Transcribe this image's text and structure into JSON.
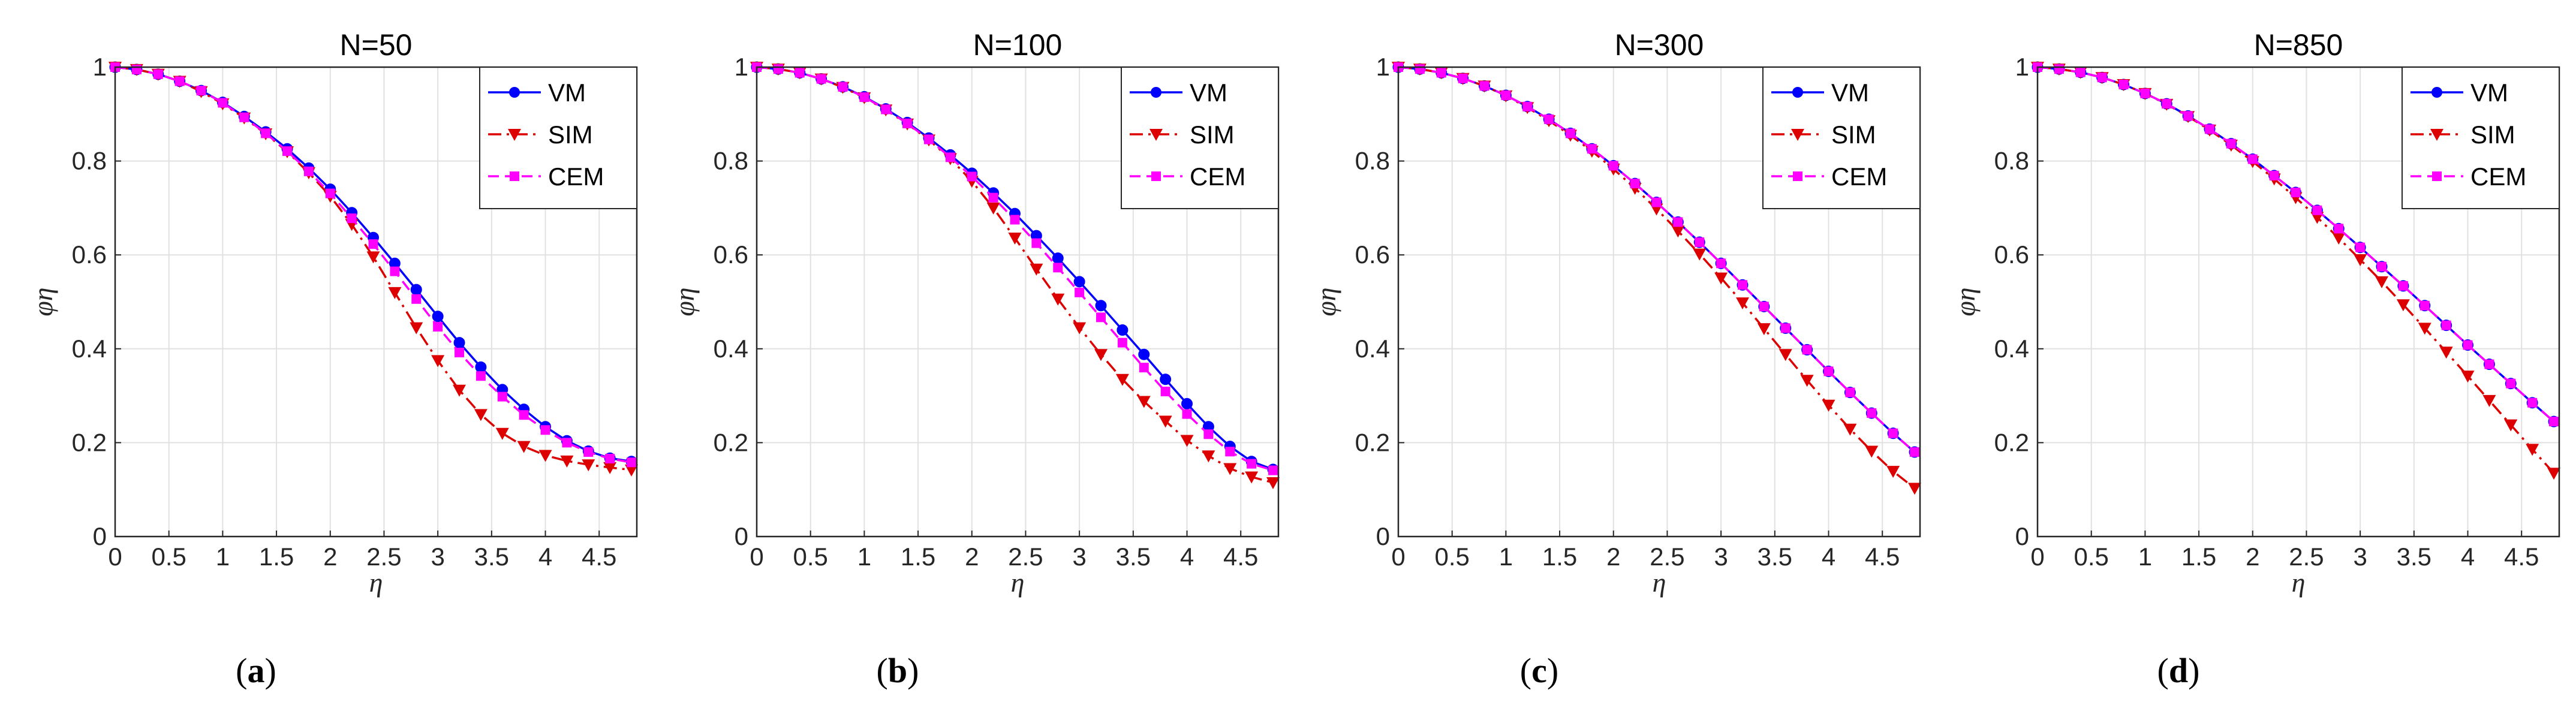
{
  "x": [
    0,
    0.2,
    0.4,
    0.6,
    0.8,
    1.0,
    1.2,
    1.4,
    1.6,
    1.8,
    2.0,
    2.2,
    2.4,
    2.6,
    2.8,
    3.0,
    3.2,
    3.4,
    3.6,
    3.8,
    4.0,
    4.2,
    4.4,
    4.6,
    4.8
  ],
  "chart_data": [
    {
      "type": "line",
      "title": "N=50",
      "panel_label": "a",
      "xlabel": "η",
      "ylabel": "φη",
      "xlim": [
        0,
        4.85
      ],
      "ylim": [
        0,
        1
      ],
      "xticks": [
        0,
        0.5,
        1,
        1.5,
        2,
        2.5,
        3,
        3.5,
        4,
        4.5
      ],
      "xtick_labels": [
        "0",
        "0.5",
        "1",
        "1.5",
        "2",
        "2.5",
        "3",
        "3.5",
        "4",
        "4.5"
      ],
      "yticks": [
        0,
        0.2,
        0.4,
        0.6,
        0.8,
        1
      ],
      "ytick_labels": [
        "0",
        "0.2",
        "0.4",
        "0.6",
        "0.8",
        "1"
      ],
      "grid": true,
      "legend_position": "top-right",
      "series": [
        {
          "name": "VM",
          "color": "#0000ff",
          "marker": "circle",
          "line": "solid",
          "values": [
            1.0,
            0.995,
            0.985,
            0.97,
            0.95,
            0.925,
            0.895,
            0.862,
            0.826,
            0.785,
            0.74,
            0.69,
            0.637,
            0.582,
            0.526,
            0.469,
            0.413,
            0.361,
            0.313,
            0.271,
            0.234,
            0.204,
            0.182,
            0.167,
            0.16
          ]
        },
        {
          "name": "SIM",
          "color": "#dd0000",
          "marker": "triangle-down",
          "line": "dashdot",
          "values": [
            1.0,
            0.995,
            0.985,
            0.97,
            0.948,
            0.922,
            0.892,
            0.858,
            0.82,
            0.775,
            0.725,
            0.665,
            0.596,
            0.52,
            0.445,
            0.375,
            0.312,
            0.26,
            0.22,
            0.192,
            0.173,
            0.161,
            0.153,
            0.147,
            0.142
          ]
        },
        {
          "name": "CEM",
          "color": "#ff00ff",
          "marker": "square",
          "line": "dashed",
          "values": [
            1.0,
            0.995,
            0.985,
            0.97,
            0.95,
            0.924,
            0.893,
            0.859,
            0.821,
            0.778,
            0.731,
            0.678,
            0.623,
            0.565,
            0.506,
            0.447,
            0.392,
            0.342,
            0.298,
            0.259,
            0.227,
            0.2,
            0.18,
            0.166,
            0.158
          ]
        }
      ]
    },
    {
      "type": "line",
      "title": "N=100",
      "panel_label": "b",
      "xlabel": "η",
      "ylabel": "φη",
      "xlim": [
        0,
        4.85
      ],
      "ylim": [
        0,
        1
      ],
      "xticks": [
        0,
        0.5,
        1,
        1.5,
        2,
        2.5,
        3,
        3.5,
        4,
        4.5
      ],
      "xtick_labels": [
        "0",
        "0.5",
        "1",
        "1.5",
        "2",
        "2.5",
        "3",
        "3.5",
        "4",
        "4.5"
      ],
      "yticks": [
        0,
        0.2,
        0.4,
        0.6,
        0.8,
        1
      ],
      "ytick_labels": [
        "0",
        "0.2",
        "0.4",
        "0.6",
        "0.8",
        "1"
      ],
      "grid": true,
      "legend_position": "top-right",
      "series": [
        {
          "name": "VM",
          "color": "#0000ff",
          "marker": "circle",
          "line": "solid",
          "values": [
            1.0,
            0.996,
            0.988,
            0.975,
            0.958,
            0.937,
            0.911,
            0.882,
            0.849,
            0.813,
            0.774,
            0.732,
            0.688,
            0.641,
            0.593,
            0.543,
            0.492,
            0.44,
            0.388,
            0.335,
            0.283,
            0.234,
            0.192,
            0.16,
            0.143
          ]
        },
        {
          "name": "SIM",
          "color": "#dd0000",
          "marker": "triangle-down",
          "line": "dashdot",
          "values": [
            1.0,
            0.996,
            0.988,
            0.975,
            0.957,
            0.935,
            0.909,
            0.879,
            0.845,
            0.805,
            0.757,
            0.7,
            0.636,
            0.57,
            0.506,
            0.445,
            0.388,
            0.335,
            0.288,
            0.246,
            0.205,
            0.172,
            0.145,
            0.127,
            0.115
          ]
        },
        {
          "name": "CEM",
          "color": "#ff00ff",
          "marker": "square",
          "line": "dashed",
          "values": [
            1.0,
            0.996,
            0.988,
            0.975,
            0.958,
            0.936,
            0.91,
            0.88,
            0.846,
            0.808,
            0.767,
            0.722,
            0.675,
            0.625,
            0.573,
            0.52,
            0.467,
            0.413,
            0.36,
            0.309,
            0.261,
            0.218,
            0.181,
            0.155,
            0.141
          ]
        }
      ]
    },
    {
      "type": "line",
      "title": "N=300",
      "panel_label": "c",
      "xlabel": "η",
      "ylabel": "φη",
      "xlim": [
        0,
        4.85
      ],
      "ylim": [
        0,
        1
      ],
      "xticks": [
        0,
        0.5,
        1,
        1.5,
        2,
        2.5,
        3,
        3.5,
        4,
        4.5
      ],
      "xtick_labels": [
        "0",
        "0.5",
        "1",
        "1.5",
        "2",
        "2.5",
        "3",
        "3.5",
        "4",
        "4.5"
      ],
      "yticks": [
        0,
        0.2,
        0.4,
        0.6,
        0.8,
        1
      ],
      "ytick_labels": [
        "0",
        "0.2",
        "0.4",
        "0.6",
        "0.8",
        "1"
      ],
      "grid": true,
      "legend_position": "top-right",
      "series": [
        {
          "name": "VM",
          "color": "#0000ff",
          "marker": "circle",
          "line": "solid",
          "values": [
            1.0,
            0.996,
            0.988,
            0.976,
            0.96,
            0.94,
            0.916,
            0.889,
            0.859,
            0.826,
            0.79,
            0.752,
            0.712,
            0.67,
            0.627,
            0.582,
            0.536,
            0.49,
            0.444,
            0.398,
            0.352,
            0.307,
            0.263,
            0.22,
            0.18
          ]
        },
        {
          "name": "SIM",
          "color": "#dd0000",
          "marker": "triangle-down",
          "line": "dashdot",
          "values": [
            1.0,
            0.996,
            0.988,
            0.976,
            0.96,
            0.939,
            0.914,
            0.886,
            0.855,
            0.821,
            0.783,
            0.742,
            0.698,
            0.651,
            0.602,
            0.551,
            0.498,
            0.443,
            0.388,
            0.333,
            0.28,
            0.229,
            0.182,
            0.139,
            0.103
          ]
        },
        {
          "name": "CEM",
          "color": "#ff00ff",
          "marker": "square",
          "line": "dashed",
          "values": [
            1.0,
            0.996,
            0.988,
            0.976,
            0.96,
            0.94,
            0.916,
            0.889,
            0.859,
            0.826,
            0.79,
            0.752,
            0.712,
            0.67,
            0.627,
            0.582,
            0.536,
            0.49,
            0.444,
            0.398,
            0.352,
            0.307,
            0.263,
            0.22,
            0.18
          ]
        }
      ]
    },
    {
      "type": "line",
      "title": "N=850",
      "panel_label": "d",
      "xlabel": "η",
      "ylabel": "φη",
      "xlim": [
        0,
        4.85
      ],
      "ylim": [
        0,
        1
      ],
      "xticks": [
        0,
        0.5,
        1,
        1.5,
        2,
        2.5,
        3,
        3.5,
        4,
        4.5
      ],
      "xtick_labels": [
        "0",
        "0.5",
        "1",
        "1.5",
        "2",
        "2.5",
        "3",
        "3.5",
        "4",
        "4.5"
      ],
      "yticks": [
        0,
        0.2,
        0.4,
        0.6,
        0.8,
        1
      ],
      "ytick_labels": [
        "0",
        "0.2",
        "0.4",
        "0.6",
        "0.8",
        "1"
      ],
      "grid": true,
      "legend_position": "top-right",
      "series": [
        {
          "name": "VM",
          "color": "#0000ff",
          "marker": "circle",
          "line": "solid",
          "values": [
            1.0,
            0.996,
            0.989,
            0.978,
            0.963,
            0.944,
            0.922,
            0.896,
            0.868,
            0.837,
            0.804,
            0.769,
            0.733,
            0.695,
            0.656,
            0.616,
            0.575,
            0.534,
            0.492,
            0.45,
            0.408,
            0.367,
            0.326,
            0.285,
            0.245
          ]
        },
        {
          "name": "SIM",
          "color": "#dd0000",
          "marker": "triangle-down",
          "line": "dashdot",
          "values": [
            1.0,
            0.996,
            0.989,
            0.978,
            0.963,
            0.944,
            0.921,
            0.895,
            0.866,
            0.834,
            0.799,
            0.762,
            0.722,
            0.68,
            0.636,
            0.59,
            0.543,
            0.494,
            0.444,
            0.393,
            0.342,
            0.29,
            0.238,
            0.186,
            0.135
          ]
        },
        {
          "name": "CEM",
          "color": "#ff00ff",
          "marker": "square",
          "line": "dashed",
          "values": [
            1.0,
            0.996,
            0.989,
            0.978,
            0.963,
            0.944,
            0.922,
            0.896,
            0.868,
            0.837,
            0.804,
            0.769,
            0.733,
            0.695,
            0.656,
            0.616,
            0.575,
            0.534,
            0.492,
            0.45,
            0.408,
            0.367,
            0.326,
            0.285,
            0.245
          ]
        }
      ]
    }
  ]
}
